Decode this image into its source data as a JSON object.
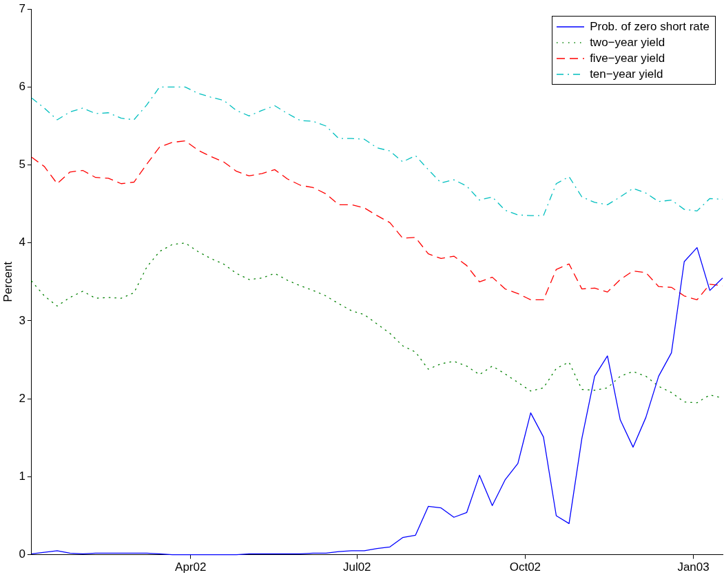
{
  "chart_data": {
    "type": "line",
    "ylabel": "Percent",
    "x": [
      "2002-01-04",
      "2002-01-11",
      "2002-01-18",
      "2002-01-25",
      "2002-02-01",
      "2002-02-08",
      "2002-02-15",
      "2002-02-22",
      "2002-03-01",
      "2002-03-08",
      "2002-03-15",
      "2002-03-22",
      "2002-03-29",
      "2002-04-05",
      "2002-04-12",
      "2002-04-19",
      "2002-04-26",
      "2002-05-03",
      "2002-05-10",
      "2002-05-17",
      "2002-05-24",
      "2002-05-31",
      "2002-06-07",
      "2002-06-14",
      "2002-06-21",
      "2002-06-28",
      "2002-07-05",
      "2002-07-12",
      "2002-07-19",
      "2002-07-26",
      "2002-08-02",
      "2002-08-09",
      "2002-08-16",
      "2002-08-23",
      "2002-08-30",
      "2002-09-06",
      "2002-09-13",
      "2002-09-20",
      "2002-09-27",
      "2002-10-04",
      "2002-10-11",
      "2002-10-18",
      "2002-10-25",
      "2002-11-01",
      "2002-11-08",
      "2002-11-15",
      "2002-11-22",
      "2002-11-29",
      "2002-12-06",
      "2002-12-13",
      "2002-12-20",
      "2002-12-27",
      "2003-01-03",
      "2003-01-10",
      "2003-01-17"
    ],
    "series": [
      {
        "name": "Prob. of zero short rate",
        "color": "#0000ff",
        "line_style": "solid",
        "values": [
          0.01,
          0.03,
          0.05,
          0.02,
          0.01,
          0.02,
          0.02,
          0.02,
          0.02,
          0.02,
          0.01,
          0,
          0,
          0,
          0,
          0,
          0,
          0.01,
          0.01,
          0.01,
          0.01,
          0.01,
          0.02,
          0.02,
          0.04,
          0.05,
          0.05,
          0.08,
          0.1,
          0.22,
          0.25,
          0.62,
          0.6,
          0.48,
          0.54,
          1.02,
          0.63,
          0.96,
          1.17,
          1.82,
          1.51,
          0.5,
          0.4,
          1.49,
          2.29,
          2.55,
          1.73,
          1.38,
          1.76,
          2.29,
          2.59,
          3.76,
          3.94,
          3.39,
          3.55
        ]
      },
      {
        "name": "two−year yield",
        "color": "#008000",
        "line_style": "dotted",
        "values": [
          3.51,
          3.32,
          3.19,
          3.3,
          3.38,
          3.29,
          3.3,
          3.29,
          3.36,
          3.69,
          3.89,
          3.98,
          4,
          3.89,
          3.8,
          3.73,
          3.61,
          3.53,
          3.55,
          3.61,
          3.52,
          3.45,
          3.39,
          3.32,
          3.22,
          3.13,
          3.08,
          2.96,
          2.84,
          2.68,
          2.6,
          2.38,
          2.45,
          2.48,
          2.42,
          2.31,
          2.42,
          2.32,
          2.21,
          2.1,
          2.14,
          2.39,
          2.47,
          2.12,
          2.11,
          2.14,
          2.29,
          2.35,
          2.29,
          2.16,
          2.08,
          1.96,
          1.95,
          2.05,
          2.01
        ]
      },
      {
        "name": "five−year yield",
        "color": "#ff0000",
        "line_style": "dashed",
        "values": [
          5.1,
          4.98,
          4.76,
          4.91,
          4.93,
          4.84,
          4.83,
          4.76,
          4.78,
          5.01,
          5.23,
          5.29,
          5.31,
          5.19,
          5.11,
          5.04,
          4.92,
          4.86,
          4.89,
          4.94,
          4.82,
          4.74,
          4.71,
          4.63,
          4.49,
          4.49,
          4.45,
          4.35,
          4.26,
          4.06,
          4.07,
          3.86,
          3.8,
          3.83,
          3.71,
          3.5,
          3.56,
          3.41,
          3.35,
          3.27,
          3.27,
          3.66,
          3.73,
          3.41,
          3.42,
          3.37,
          3.53,
          3.64,
          3.62,
          3.44,
          3.43,
          3.32,
          3.27,
          3.47,
          3.45
        ]
      },
      {
        "name": "ten−year yield",
        "color": "#00bfbf",
        "line_style": "dashdot",
        "values": [
          5.86,
          5.73,
          5.58,
          5.68,
          5.73,
          5.66,
          5.67,
          5.6,
          5.58,
          5.77,
          6,
          6,
          6,
          5.92,
          5.87,
          5.83,
          5.7,
          5.63,
          5.7,
          5.76,
          5.66,
          5.57,
          5.56,
          5.5,
          5.34,
          5.34,
          5.33,
          5.22,
          5.18,
          5.04,
          5.12,
          4.94,
          4.77,
          4.81,
          4.73,
          4.55,
          4.59,
          4.42,
          4.36,
          4.35,
          4.35,
          4.76,
          4.85,
          4.59,
          4.52,
          4.49,
          4.59,
          4.7,
          4.64,
          4.53,
          4.55,
          4.43,
          4.41,
          4.57,
          4.56
        ]
      }
    ],
    "xlim": [
      "2002-01-04",
      "2003-01-17"
    ],
    "xticks": [
      {
        "value": "2002-04-01",
        "label": "Apr02"
      },
      {
        "value": "2002-07-01",
        "label": "Jul02"
      },
      {
        "value": "2002-10-01",
        "label": "Oct02"
      },
      {
        "value": "2003-01-01",
        "label": "Jan03"
      }
    ],
    "ylim": [
      0,
      7
    ],
    "yticks": [
      0,
      1,
      2,
      3,
      4,
      5,
      6,
      7
    ],
    "grid": false,
    "legend": "top right",
    "marker": "none"
  }
}
